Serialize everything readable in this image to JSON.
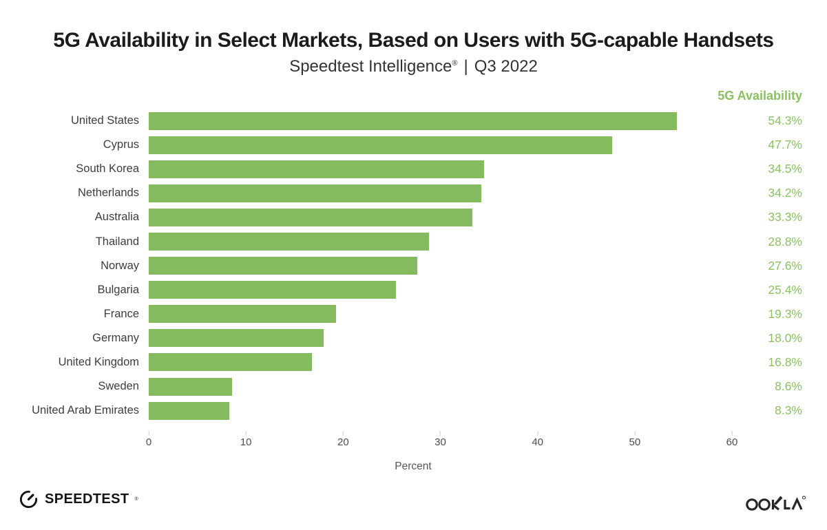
{
  "header": {
    "title": "5G Availability in Select Markets, Based on Users with 5G-capable Handsets",
    "subtitle_product": "Speedtest Intelligence",
    "subtitle_reg": "®",
    "subtitle_separator": "|",
    "subtitle_period": "Q3 2022"
  },
  "chart_data": {
    "type": "bar",
    "orientation": "horizontal",
    "title": "5G Availability in Select Markets, Based on Users with 5G-capable Handsets",
    "subtitle": "Speedtest Intelligence® | Q3 2022",
    "value_column_header": "5G Availability",
    "categories": [
      "United States",
      "Cyprus",
      "South Korea",
      "Netherlands",
      "Australia",
      "Thailand",
      "Norway",
      "Bulgaria",
      "France",
      "Germany",
      "United Kingdom",
      "Sweden",
      "United Arab Emirates"
    ],
    "values": [
      54.3,
      47.7,
      34.5,
      34.2,
      33.3,
      28.8,
      27.6,
      25.4,
      19.3,
      18.0,
      16.8,
      8.6,
      8.3
    ],
    "value_labels": [
      "54.3%",
      "47.7%",
      "34.5%",
      "34.2%",
      "33.3%",
      "28.8%",
      "27.6%",
      "25.4%",
      "19.3%",
      "18.0%",
      "16.8%",
      "8.6%",
      "8.3%"
    ],
    "xlabel": "Percent",
    "xticks": [
      0,
      10,
      20,
      30,
      40,
      50,
      60
    ],
    "xlim": [
      0,
      60
    ],
    "grid": false,
    "bar_color": "#84bb5e",
    "value_text_color": "#8bc162",
    "unit": "percent"
  },
  "footer": {
    "speedtest_label": "SPEEDTEST",
    "speedtest_mark": "®",
    "ookla_label": "OOKLA",
    "ookla_mark": "®"
  }
}
